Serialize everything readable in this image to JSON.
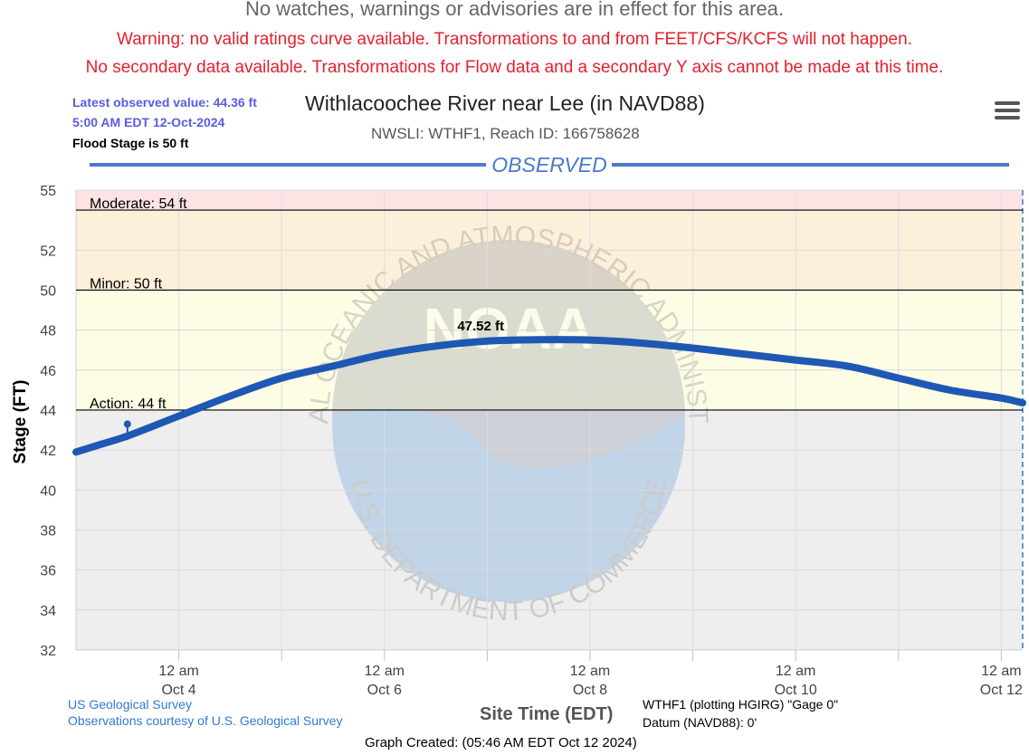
{
  "banners": {
    "watches": "No watches, warnings or advisories are in effect for this area.",
    "ratings_warning": "Warning: no valid ratings curve available. Transformations to and from FEET/CFS/KCFS will not happen.",
    "secondary_warning": "No secondary data available. Transformations for Flow data and a secondary Y axis cannot be made at this time."
  },
  "info": {
    "latest_value": "Latest observed value: 44.36 ft",
    "latest_time": "5:00 AM EDT 12-Oct-2024",
    "flood_stage": "Flood Stage is 50 ft"
  },
  "menu_icon": "hamburger-menu-icon",
  "watermark_icon": "noaa-logo",
  "watermark_text": {
    "top": "NATIONAL OCEANIC AND ATMOSPHERIC ADMINISTRATION",
    "bottom": "U.S. DEPARTMENT OF COMMERCE",
    "logo": "NOAA"
  },
  "colors": {
    "series": "#1f57b4",
    "moderate_band": "#fde3e3",
    "minor_band": "#fdf0da",
    "action_band": "#fdfce4",
    "below_band": "#eeeeee",
    "banner_text": "#e4202f",
    "info_text": "#5b5be0",
    "link": "#2f7bd0"
  },
  "chart_data": {
    "type": "line",
    "title": "Withlacoochee River near Lee (in NAVD88)",
    "subtitle": "NWSLI: WTHF1, Reach ID: 166758628",
    "section_label": "OBSERVED",
    "ylabel": "Stage (FT)",
    "xlabel": "Site Time (EDT)",
    "ylim": [
      32,
      55
    ],
    "yticks": [
      55,
      52,
      50,
      48,
      46,
      44,
      42,
      40,
      38,
      36,
      34,
      32
    ],
    "xlim": [
      "2024-10-03 00:00",
      "2024-10-12 05:00"
    ],
    "xticks": [
      {
        "date": "2024-10-04 00:00",
        "time": "12 am",
        "day": "Oct 4"
      },
      {
        "date": "2024-10-06 00:00",
        "time": "12 am",
        "day": "Oct 6"
      },
      {
        "date": "2024-10-08 00:00",
        "time": "12 am",
        "day": "Oct 8"
      },
      {
        "date": "2024-10-10 00:00",
        "time": "12 am",
        "day": "Oct 10"
      },
      {
        "date": "2024-10-12 00:00",
        "time": "12 am",
        "day": "Oct 12"
      }
    ],
    "minor_gridlines": [
      "2024-10-05 00:00",
      "2024-10-07 00:00",
      "2024-10-09 00:00",
      "2024-10-11 00:00"
    ],
    "thresholds": [
      {
        "label": "Moderate: 54 ft",
        "value": 54
      },
      {
        "label": "Minor: 50 ft",
        "value": 50
      },
      {
        "label": "Action: 44 ft",
        "value": 44
      }
    ],
    "peak_label": "47.52 ft",
    "grid": true,
    "legend": "none",
    "series": [
      {
        "x": [
          "2024-10-03 00:00",
          "2024-10-03 06:00",
          "2024-10-03 12:00",
          "2024-10-04 00:00",
          "2024-10-04 12:00",
          "2024-10-05 00:00",
          "2024-10-05 12:00",
          "2024-10-06 00:00",
          "2024-10-06 12:00",
          "2024-10-07 00:00",
          "2024-10-07 12:00",
          "2024-10-08 00:00",
          "2024-10-08 12:00",
          "2024-10-09 00:00",
          "2024-10-09 12:00",
          "2024-10-10 00:00",
          "2024-10-10 12:00",
          "2024-10-11 00:00",
          "2024-10-11 12:00",
          "2024-10-12 00:00",
          "2024-10-12 05:00"
        ],
        "y": [
          41.9,
          42.3,
          42.7,
          43.7,
          44.7,
          45.6,
          46.2,
          46.8,
          47.2,
          47.45,
          47.52,
          47.5,
          47.35,
          47.1,
          46.8,
          46.5,
          46.2,
          45.6,
          45.0,
          44.6,
          44.36
        ]
      }
    ],
    "annotation_marker": {
      "x": "2024-10-03 12:00",
      "y": 42.5,
      "top": 43.3
    }
  },
  "footer": {
    "source1": "US Geological Survey",
    "source2": "Observations courtesy of U.S. Geological Survey",
    "gage_line1": "WTHF1 (plotting HGIRG) \"Gage 0\"",
    "gage_line2": "Datum (NAVD88): 0'",
    "created": "Graph Created: (05:46 AM EDT Oct 12 2024)"
  }
}
